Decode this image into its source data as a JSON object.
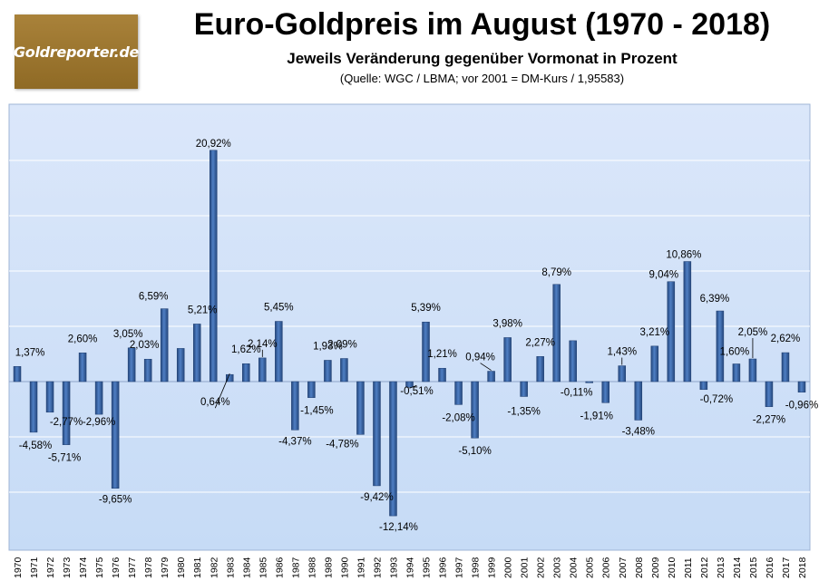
{
  "header": {
    "logo_text": "Goldreporter.de",
    "title": "Euro-Goldpreis im August (1970 - 2018)",
    "subtitle": "Jeweils Veränderung gegenüber Vormonat in Prozent",
    "source": "(Quelle: WGC / LBMA; vor 2001 = DM-Kurs / 1,95583)"
  },
  "colors": {
    "plot_bg_top": "#dbe7fa",
    "plot_bg_bottom": "#c6dbf6",
    "bar": "#3a67a8",
    "grid": "#ffffff"
  },
  "chart_data": {
    "type": "bar",
    "title": "Euro-Goldpreis im August (1970 - 2018)",
    "subtitle": "Jeweils Veränderung gegenüber Vormonat in Prozent",
    "xlabel": "",
    "ylabel": "",
    "ylim": [
      -14,
      25
    ],
    "grid": true,
    "legend": "none",
    "categories": [
      "1970",
      "1971",
      "1972",
      "1973",
      "1974",
      "1975",
      "1976",
      "1977",
      "1978",
      "1979",
      "1980",
      "1981",
      "1982",
      "1983",
      "1984",
      "1985",
      "1986",
      "1987",
      "1988",
      "1989",
      "1990",
      "1991",
      "1992",
      "1993",
      "1994",
      "1995",
      "1996",
      "1997",
      "1998",
      "1999",
      "2000",
      "2001",
      "2002",
      "2003",
      "2004",
      "2005",
      "2006",
      "2007",
      "2008",
      "2009",
      "2010",
      "2011",
      "2012",
      "2013",
      "2014",
      "2015",
      "2016",
      "2017",
      "2018"
    ],
    "values": [
      1.37,
      -4.58,
      -2.77,
      -5.71,
      2.6,
      -2.96,
      -9.65,
      3.05,
      2.03,
      6.59,
      3.0,
      5.21,
      20.92,
      0.64,
      1.62,
      2.14,
      5.45,
      -4.37,
      -1.45,
      1.93,
      2.09,
      -4.78,
      -9.42,
      -12.14,
      -0.51,
      5.39,
      1.21,
      -2.08,
      -5.1,
      0.94,
      3.98,
      -1.35,
      2.27,
      8.79,
      3.7,
      -0.11,
      -1.91,
      1.43,
      -3.48,
      3.21,
      9.04,
      10.86,
      -0.72,
      6.39,
      1.6,
      2.05,
      -2.27,
      2.62,
      -0.96
    ],
    "data_labels": [
      "1,37%",
      "-4,58%",
      "-2,77%",
      "-5,71%",
      "2,60%",
      "-2,96%",
      "-9,65%",
      "3,05%",
      "2,03%",
      "6,59%",
      "",
      "5,21%",
      "20,92%",
      "0,64%",
      "1,62%",
      "2,14%",
      "5,45%",
      "-4,37%",
      "-1,45%",
      "1,93%",
      "2,09%",
      "-4,78%",
      "-9,42%",
      "-12,14%",
      "-0,51%",
      "5,39%",
      "1,21%",
      "-2,08%",
      "-5,10%",
      "0,94%",
      "3,98%",
      "-1,35%",
      "2,27%",
      "8,79%",
      "",
      "-0,11%",
      "-1,91%",
      "1,43%",
      "-3,48%",
      "3,21%",
      "9,04%",
      "10,86%",
      "-0,72%",
      "6,39%",
      "1,60%",
      "2,05%",
      "-2,27%",
      "2,62%",
      "-0,96%"
    ]
  }
}
